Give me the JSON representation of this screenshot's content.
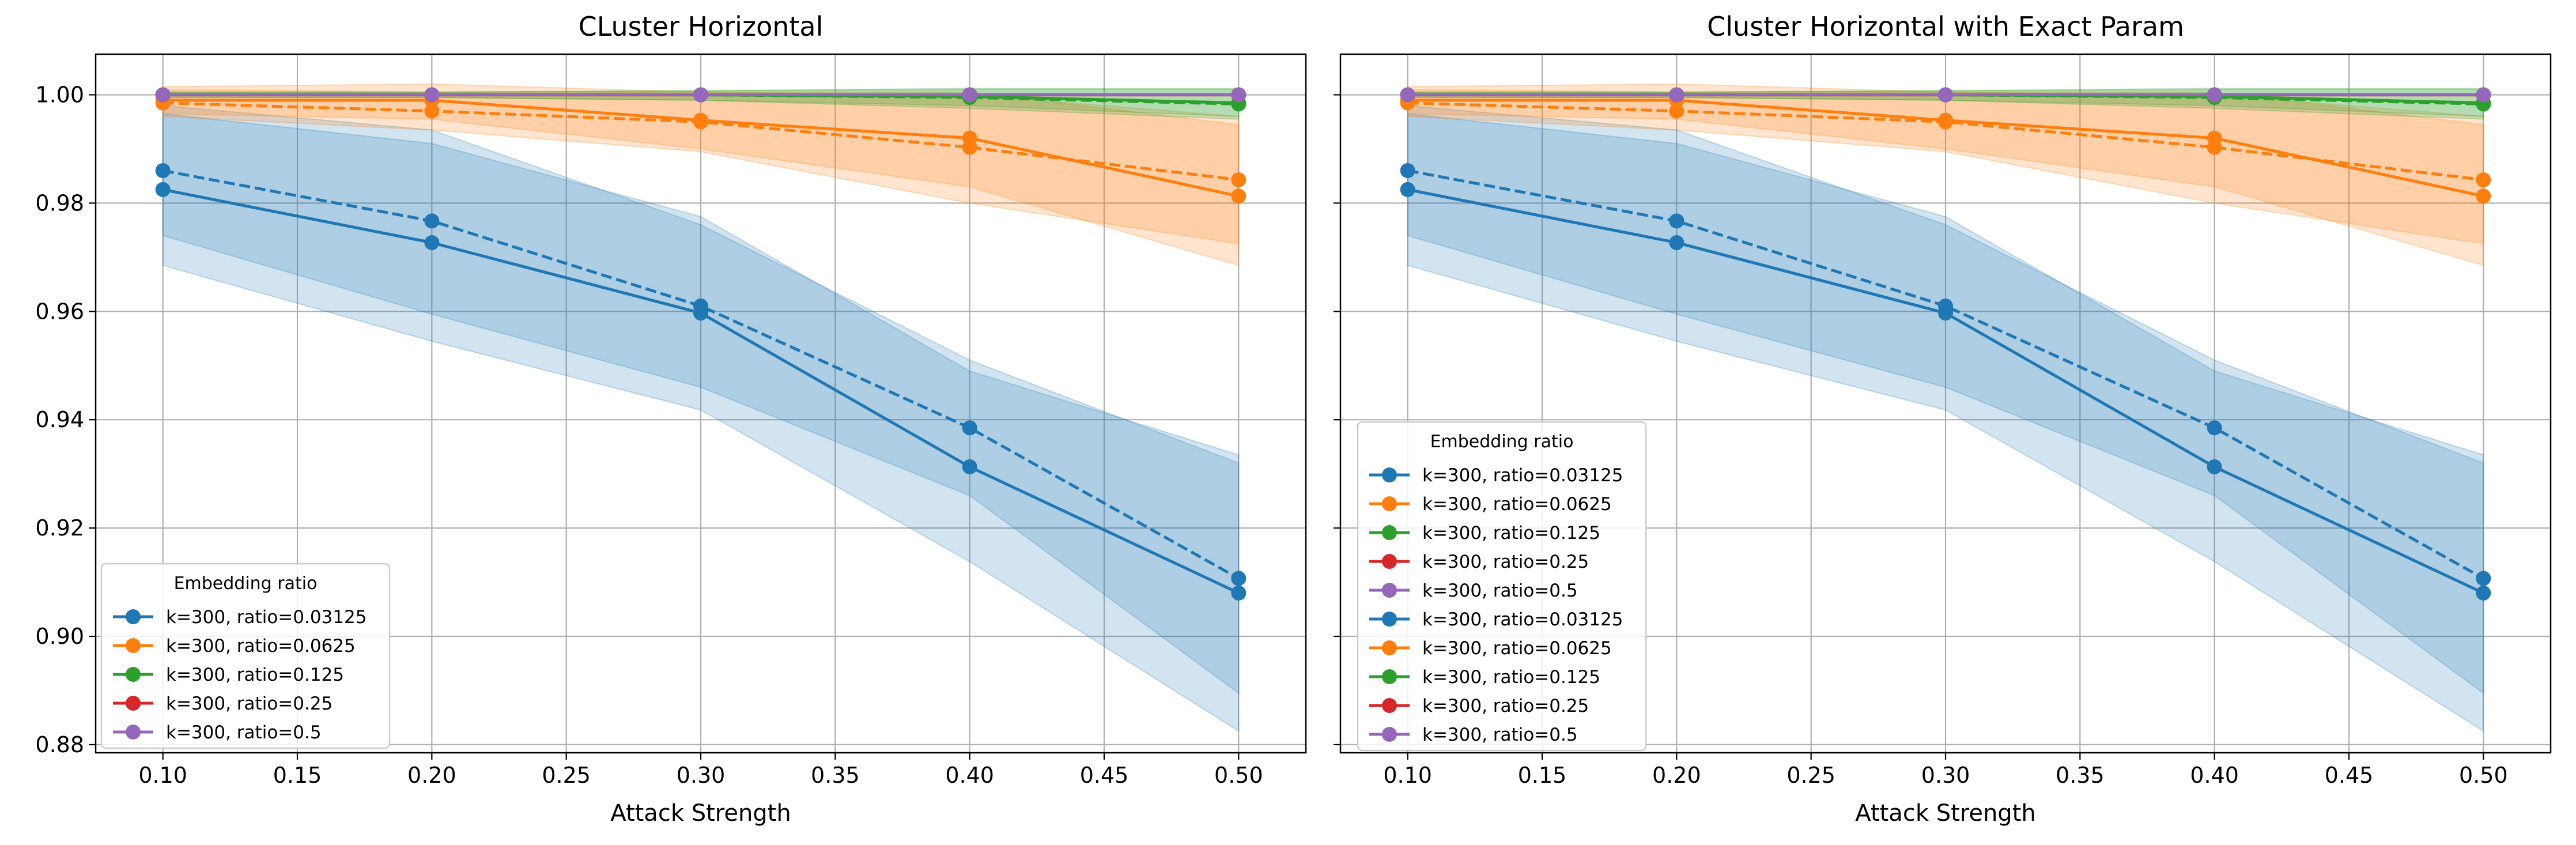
{
  "chart_data": [
    {
      "type": "line",
      "title": "CLuster Horizontal",
      "xlabel": "Attack Strength",
      "ylabel": "",
      "xlim": [
        0.075,
        0.525
      ],
      "ylim": [
        0.8785,
        1.0075
      ],
      "xticks": [
        "0.10",
        "0.15",
        "0.20",
        "0.25",
        "0.30",
        "0.35",
        "0.40",
        "0.45",
        "0.50"
      ],
      "yticks": [
        "0.88",
        "0.90",
        "0.92",
        "0.94",
        "0.96",
        "0.98",
        "1.00"
      ],
      "grid": true,
      "legend": {
        "title": "Embedding ratio",
        "placement": "lower-left",
        "entries": [
          {
            "label": "k=300, ratio=0.03125",
            "color": "#1f77b4"
          },
          {
            "label": "k=300, ratio=0.0625",
            "color": "#ff7f0e"
          },
          {
            "label": "k=300, ratio=0.125",
            "color": "#2ca02c"
          },
          {
            "label": "k=300, ratio=0.25",
            "color": "#d62728"
          },
          {
            "label": "k=300, ratio=0.5",
            "color": "#9467bd"
          }
        ]
      },
      "x": [
        0.1,
        0.2,
        0.3,
        0.4,
        0.5
      ],
      "series": [
        {
          "name": "k=300, ratio=0.03125",
          "color": "#1f77b4",
          "style": "solid",
          "values": [
            0.9825,
            0.9727,
            0.9597,
            0.9313,
            0.908
          ],
          "band_low": [
            0.9685,
            0.9545,
            0.9418,
            0.9138,
            0.8825
          ],
          "band_high": [
            0.9965,
            0.991,
            0.9775,
            0.949,
            0.9335
          ]
        },
        {
          "name": "k=300, ratio=0.03125",
          "color": "#1f77b4",
          "style": "dashed",
          "values": [
            0.986,
            0.9767,
            0.961,
            0.9385,
            0.9107
          ],
          "band_low": [
            0.974,
            0.9595,
            0.946,
            0.926,
            0.8895
          ],
          "band_high": [
            0.998,
            0.9935,
            0.976,
            0.951,
            0.932
          ]
        },
        {
          "name": "k=300, ratio=0.0625",
          "color": "#ff7f0e",
          "style": "solid",
          "values": [
            0.999,
            0.999,
            0.9953,
            0.992,
            0.9813
          ],
          "band_low": [
            0.9965,
            0.9955,
            0.99,
            0.983,
            0.9685
          ],
          "band_high": [
            1.0015,
            1.002,
            1.0005,
            1.0005,
            0.9945
          ]
        },
        {
          "name": "k=300, ratio=0.0625",
          "color": "#ff7f0e",
          "style": "dashed",
          "values": [
            0.9985,
            0.997,
            0.995,
            0.9903,
            0.9843
          ],
          "band_low": [
            0.996,
            0.9935,
            0.9895,
            0.98,
            0.9725
          ],
          "band_high": [
            1.001,
            1.0005,
            1.0005,
            1.0,
            0.996
          ]
        },
        {
          "name": "k=300, ratio=0.125",
          "color": "#2ca02c",
          "style": "solid",
          "values": [
            1.0,
            1.0,
            1.0,
            0.9997,
            0.9985
          ],
          "band_low": [
            0.9995,
            0.9995,
            0.999,
            0.998,
            0.996
          ],
          "band_high": [
            1.0005,
            1.0005,
            1.0007,
            1.0012,
            1.0012
          ]
        },
        {
          "name": "k=300, ratio=0.125",
          "color": "#2ca02c",
          "style": "dashed",
          "values": [
            1.0,
            1.0,
            1.0,
            0.9995,
            0.9983
          ],
          "band_low": [
            0.9995,
            0.9995,
            0.999,
            0.9975,
            0.9955
          ],
          "band_high": [
            1.0005,
            1.0005,
            1.0008,
            1.001,
            1.001
          ]
        },
        {
          "name": "k=300, ratio=0.25",
          "color": "#d62728",
          "style": "solid",
          "values": [
            1.0,
            1.0,
            1.0,
            1.0,
            1.0
          ],
          "band_low": [
            0.9998,
            0.9998,
            0.9998,
            0.9998,
            0.9998
          ],
          "band_high": [
            1.0002,
            1.0002,
            1.0002,
            1.0002,
            1.0002
          ]
        },
        {
          "name": "k=300, ratio=0.25",
          "color": "#d62728",
          "style": "dashed",
          "values": [
            1.0,
            1.0,
            1.0,
            1.0,
            1.0
          ],
          "band_low": [
            0.9998,
            0.9998,
            0.9998,
            0.9998,
            0.9998
          ],
          "band_high": [
            1.0002,
            1.0002,
            1.0002,
            1.0002,
            1.0002
          ]
        },
        {
          "name": "k=300, ratio=0.5",
          "color": "#9467bd",
          "style": "solid",
          "values": [
            1.0,
            1.0,
            1.0,
            1.0,
            1.0
          ],
          "band_low": [
            1.0,
            1.0,
            1.0,
            1.0,
            1.0
          ],
          "band_high": [
            1.0,
            1.0,
            1.0,
            1.0,
            1.0
          ]
        },
        {
          "name": "k=300, ratio=0.5",
          "color": "#9467bd",
          "style": "dashed",
          "values": [
            1.0,
            1.0,
            1.0,
            1.0,
            1.0
          ],
          "band_low": [
            1.0,
            1.0,
            1.0,
            1.0,
            1.0
          ],
          "band_high": [
            1.0,
            1.0,
            1.0,
            1.0,
            1.0
          ]
        }
      ]
    },
    {
      "type": "line",
      "title": "Cluster Horizontal with Exact Param",
      "xlabel": "Attack Strength",
      "ylabel": "",
      "xlim": [
        0.075,
        0.525
      ],
      "ylim": [
        0.8785,
        1.0075
      ],
      "xticks": [
        "0.10",
        "0.15",
        "0.20",
        "0.25",
        "0.30",
        "0.35",
        "0.40",
        "0.45",
        "0.50"
      ],
      "yticks": [],
      "grid": true,
      "legend": {
        "title": "Embedding ratio",
        "placement": "center-left",
        "entries": [
          {
            "label": "k=300, ratio=0.03125",
            "color": "#1f77b4"
          },
          {
            "label": "k=300, ratio=0.0625",
            "color": "#ff7f0e"
          },
          {
            "label": "k=300, ratio=0.125",
            "color": "#2ca02c"
          },
          {
            "label": "k=300, ratio=0.25",
            "color": "#d62728"
          },
          {
            "label": "k=300, ratio=0.5",
            "color": "#9467bd"
          },
          {
            "label": "k=300, ratio=0.03125",
            "color": "#1f77b4"
          },
          {
            "label": "k=300, ratio=0.0625",
            "color": "#ff7f0e"
          },
          {
            "label": "k=300, ratio=0.125",
            "color": "#2ca02c"
          },
          {
            "label": "k=300, ratio=0.25",
            "color": "#d62728"
          },
          {
            "label": "k=300, ratio=0.5",
            "color": "#9467bd"
          }
        ]
      },
      "x": [
        0.1,
        0.2,
        0.3,
        0.4,
        0.5
      ],
      "series": [
        {
          "name": "k=300, ratio=0.03125",
          "color": "#1f77b4",
          "style": "solid",
          "values": [
            0.9825,
            0.9727,
            0.9597,
            0.9313,
            0.908
          ],
          "band_low": [
            0.9685,
            0.9545,
            0.9418,
            0.9138,
            0.8825
          ],
          "band_high": [
            0.9965,
            0.991,
            0.9775,
            0.949,
            0.9335
          ]
        },
        {
          "name": "k=300, ratio=0.03125",
          "color": "#1f77b4",
          "style": "dashed",
          "values": [
            0.986,
            0.9767,
            0.961,
            0.9385,
            0.9107
          ],
          "band_low": [
            0.974,
            0.9595,
            0.946,
            0.926,
            0.8895
          ],
          "band_high": [
            0.998,
            0.9935,
            0.976,
            0.951,
            0.932
          ]
        },
        {
          "name": "k=300, ratio=0.0625",
          "color": "#ff7f0e",
          "style": "solid",
          "values": [
            0.999,
            0.999,
            0.9953,
            0.992,
            0.9813
          ],
          "band_low": [
            0.9965,
            0.9955,
            0.99,
            0.983,
            0.9685
          ],
          "band_high": [
            1.0015,
            1.002,
            1.0005,
            1.0005,
            0.9945
          ]
        },
        {
          "name": "k=300, ratio=0.0625",
          "color": "#ff7f0e",
          "style": "dashed",
          "values": [
            0.9985,
            0.997,
            0.995,
            0.9903,
            0.9843
          ],
          "band_low": [
            0.996,
            0.9935,
            0.9895,
            0.98,
            0.9725
          ],
          "band_high": [
            1.001,
            1.0005,
            1.0005,
            1.0,
            0.996
          ]
        },
        {
          "name": "k=300, ratio=0.125",
          "color": "#2ca02c",
          "style": "solid",
          "values": [
            1.0,
            1.0,
            1.0,
            0.9997,
            0.9985
          ],
          "band_low": [
            0.9995,
            0.9995,
            0.999,
            0.998,
            0.996
          ],
          "band_high": [
            1.0005,
            1.0005,
            1.0007,
            1.0012,
            1.0012
          ]
        },
        {
          "name": "k=300, ratio=0.125",
          "color": "#2ca02c",
          "style": "dashed",
          "values": [
            1.0,
            1.0,
            1.0,
            0.9995,
            0.9983
          ],
          "band_low": [
            0.9995,
            0.9995,
            0.999,
            0.9975,
            0.9955
          ],
          "band_high": [
            1.0005,
            1.0005,
            1.0008,
            1.001,
            1.001
          ]
        },
        {
          "name": "k=300, ratio=0.25",
          "color": "#d62728",
          "style": "solid",
          "values": [
            1.0,
            1.0,
            1.0,
            1.0,
            1.0
          ],
          "band_low": [
            0.9998,
            0.9998,
            0.9998,
            0.9998,
            0.9998
          ],
          "band_high": [
            1.0002,
            1.0002,
            1.0002,
            1.0002,
            1.0002
          ]
        },
        {
          "name": "k=300, ratio=0.25",
          "color": "#d62728",
          "style": "dashed",
          "values": [
            1.0,
            1.0,
            1.0,
            1.0,
            1.0
          ],
          "band_low": [
            0.9998,
            0.9998,
            0.9998,
            0.9998,
            0.9998
          ],
          "band_high": [
            1.0002,
            1.0002,
            1.0002,
            1.0002,
            1.0002
          ]
        },
        {
          "name": "k=300, ratio=0.5",
          "color": "#9467bd",
          "style": "solid",
          "values": [
            1.0,
            1.0,
            1.0,
            1.0,
            1.0
          ],
          "band_low": [
            1.0,
            1.0,
            1.0,
            1.0,
            1.0
          ],
          "band_high": [
            1.0,
            1.0,
            1.0,
            1.0,
            1.0
          ]
        },
        {
          "name": "k=300, ratio=0.5",
          "color": "#9467bd",
          "style": "dashed",
          "values": [
            1.0,
            1.0,
            1.0,
            1.0,
            1.0
          ],
          "band_low": [
            1.0,
            1.0,
            1.0,
            1.0,
            1.0
          ],
          "band_high": [
            1.0,
            1.0,
            1.0,
            1.0,
            1.0
          ]
        }
      ]
    }
  ]
}
